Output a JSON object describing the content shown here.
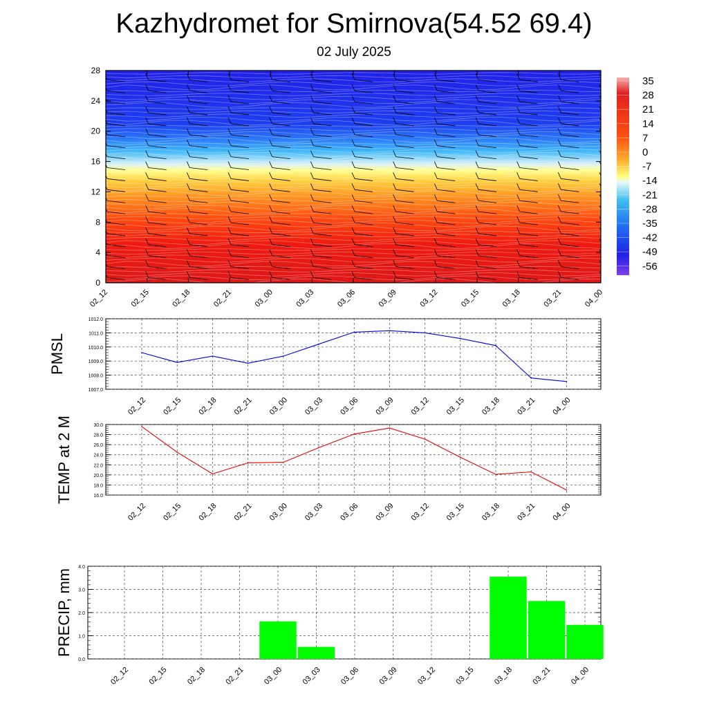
{
  "header": {
    "title": "Kazhydromet for Smirnova(54.52 69.4)",
    "subtitle": "02 July 2025"
  },
  "colors": {
    "pmsl_line": "#0000ee",
    "temp_line": "#ee0000",
    "precip_bar": "#00ff00"
  },
  "chart_data": [
    {
      "type": "heatmap",
      "name_hint": "vertical temperature cross-section with wind barbs",
      "x_ticks": [
        "02_12",
        "02_15",
        "02_18",
        "02_21",
        "03_00",
        "03_03",
        "03_06",
        "03_09",
        "03_12",
        "03_15",
        "03_18",
        "03_21",
        "04_00"
      ],
      "y_ticks": [
        "0",
        "4",
        "8",
        "12",
        "16",
        "20",
        "24",
        "28"
      ],
      "ylim": [
        0,
        28
      ],
      "colorbar_labels": [
        "35",
        "28",
        "21",
        "14",
        "7",
        "0",
        "-7",
        "-14",
        "-21",
        "-28",
        "-35",
        "-42",
        "-49",
        "-56"
      ],
      "colorbar_range": [
        -60,
        38
      ]
    },
    {
      "type": "line",
      "ylabel": "PMSL",
      "x": [
        "02_12",
        "02_15",
        "02_18",
        "02_21",
        "03_00",
        "03_03",
        "03_06",
        "03_09",
        "03_12",
        "03_15",
        "03_18",
        "03_21",
        "04_00"
      ],
      "values": [
        1009.6,
        1008.9,
        1009.35,
        1008.85,
        1009.35,
        1010.2,
        1011.05,
        1011.15,
        1011.0,
        1010.6,
        1010.1,
        1007.8,
        1007.55
      ],
      "ylim": [
        1007.0,
        1012.0
      ],
      "y_ticks": [
        "1007.0",
        "1008.0",
        "1009.0",
        "1010.0",
        "1011.0",
        "1012.0"
      ],
      "grid": true
    },
    {
      "type": "line",
      "ylabel": "TEMP at 2 M",
      "x": [
        "02_12",
        "02_15",
        "02_18",
        "02_21",
        "03_00",
        "03_03",
        "03_06",
        "03_09",
        "03_12",
        "03_15",
        "03_18",
        "03_21",
        "04_00"
      ],
      "values": [
        29.6,
        24.5,
        20.2,
        22.4,
        22.5,
        25.4,
        28.1,
        29.3,
        27.1,
        23.5,
        20.1,
        20.6,
        17.0
      ],
      "ylim": [
        16.0,
        30.0
      ],
      "y_ticks": [
        "16.0",
        "18.0",
        "20.0",
        "22.0",
        "24.0",
        "26.0",
        "28.0",
        "30.0"
      ],
      "grid": true
    },
    {
      "type": "bar",
      "ylabel": "PRECIP, mm",
      "categories": [
        "02_12",
        "02_15",
        "02_18",
        "02_21",
        "03_00",
        "03_03",
        "03_06",
        "03_09",
        "03_12",
        "03_15",
        "03_18",
        "03_21",
        "04_00"
      ],
      "values": [
        0,
        0,
        0,
        0,
        1.62,
        0.52,
        0,
        0,
        0,
        0,
        3.55,
        2.5,
        1.47
      ],
      "ylim": [
        0.0,
        4.0
      ],
      "y_ticks": [
        "0.0",
        "1.0",
        "2.0",
        "3.0",
        "4.0"
      ],
      "grid": true
    }
  ]
}
